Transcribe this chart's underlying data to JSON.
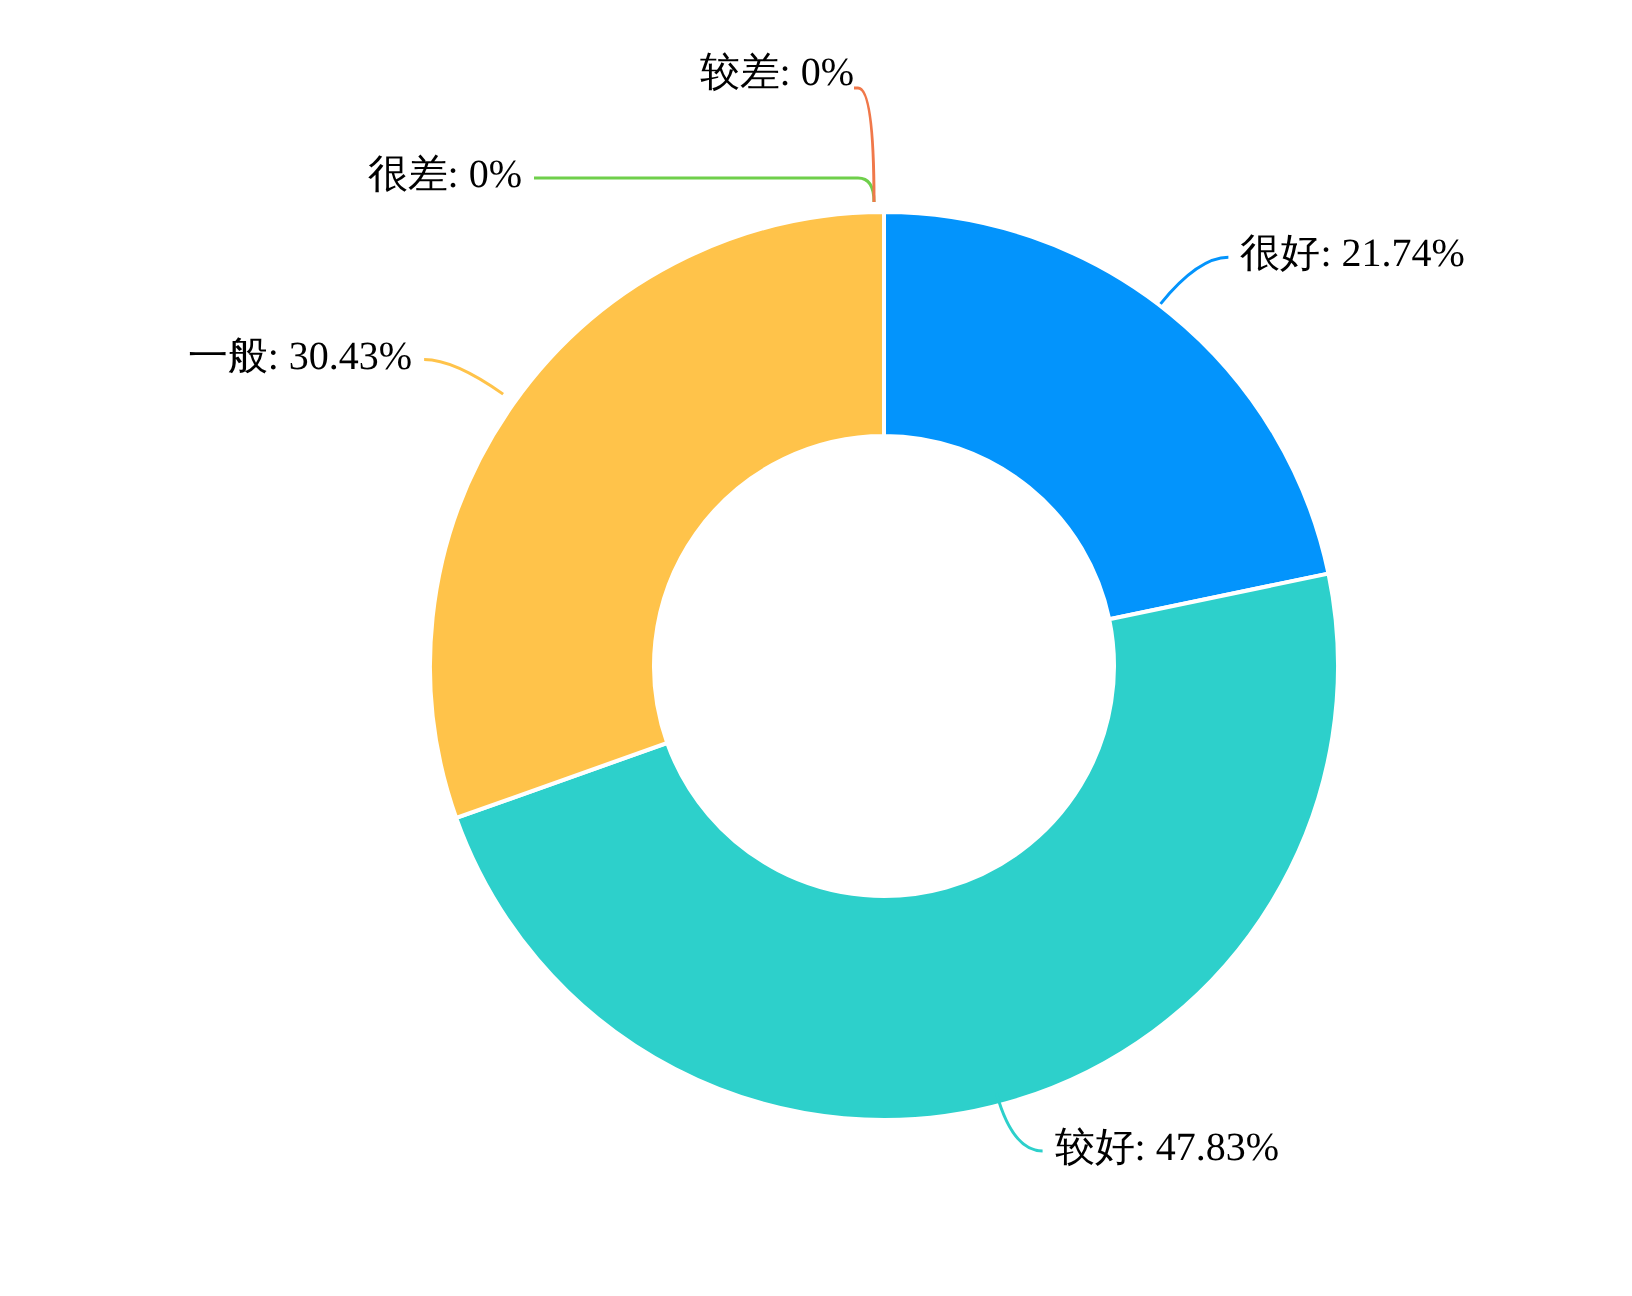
{
  "chart_data": {
    "type": "donut",
    "categories": [
      "很好",
      "较好",
      "一般",
      "很差",
      "较差"
    ],
    "values": [
      21.74,
      47.83,
      30.43,
      0,
      0
    ],
    "value_labels": [
      ": 21.74%",
      ": 47.83%",
      ": 30.43%",
      ": 0%",
      ": 0%"
    ],
    "colors": [
      "#0394fc",
      "#2dd0cb",
      "#ffc34a",
      "#6fcf4b",
      "#f0784a"
    ],
    "legend": false
  }
}
